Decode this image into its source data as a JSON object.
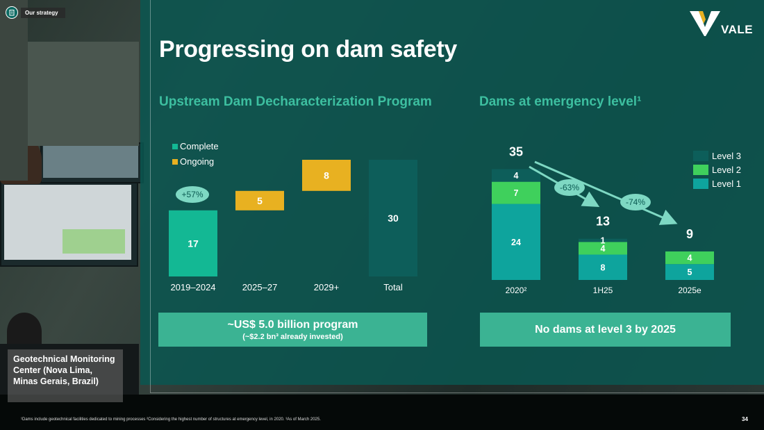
{
  "header": {
    "tag": "Our strategy",
    "title": "Progressing on dam safety",
    "logo_text": "VALE"
  },
  "left_chart": {
    "subtitle": "Upstream Dam Decharacterization Program",
    "legend": [
      "Complete",
      "Ongoing"
    ],
    "growth_badge": "+57%",
    "box_main": "~US$ 5.0 billion program",
    "box_sub": "(~$2.2 bn³ already invested)"
  },
  "right_chart": {
    "subtitle": "Dams at emergency level¹",
    "legend": [
      "Level 3",
      "Level 2",
      "Level 1"
    ],
    "badges": [
      "-63%",
      "-74%"
    ],
    "box_main": "No dams at level 3 by 2025"
  },
  "caption": "Geotechnical Monitoring Center (Nova Lima, Minas Gerais, Brazil)",
  "footnote": "¹Dams include geotechnical facilities dedicated to mining processes ²Considering the highest number of structures at emergency level, in 2020. ³As of March 2025.",
  "page_number": "34",
  "colors": {
    "complete": "#13b894",
    "ongoing": "#e8b121",
    "total": "#0d5e5a",
    "level3": "#0d5e5a",
    "level2": "#3fd05c",
    "level1": "#0ea49d",
    "badge": "#7ed8c3",
    "accent_title": "#3dbfa0"
  },
  "chart_data": [
    {
      "type": "bar",
      "title": "Upstream Dam Decharacterization Program",
      "categories": [
        "2019–2024",
        "2025–27",
        "2029+",
        "Total"
      ],
      "series": [
        {
          "name": "Complete",
          "values": [
            17,
            null,
            null,
            null
          ]
        },
        {
          "name": "Ongoing",
          "values": [
            null,
            5,
            8,
            null
          ]
        },
        {
          "name": "Total",
          "values": [
            null,
            null,
            null,
            30
          ]
        }
      ],
      "layout": "waterfall"
    },
    {
      "type": "bar",
      "title": "Dams at emergency level¹",
      "categories": [
        "2020²",
        "1H25",
        "2025e"
      ],
      "series": [
        {
          "name": "Level 1",
          "values": [
            24,
            8,
            5
          ]
        },
        {
          "name": "Level 2",
          "values": [
            7,
            4,
            4
          ]
        },
        {
          "name": "Level 3",
          "values": [
            4,
            1,
            0
          ]
        }
      ],
      "totals": [
        35,
        13,
        9
      ],
      "stacked": true
    }
  ]
}
